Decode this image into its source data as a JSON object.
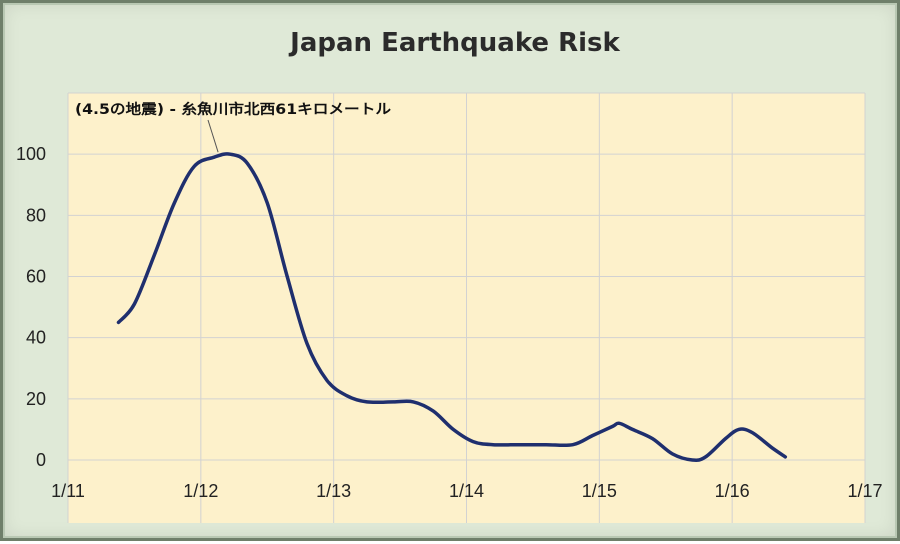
{
  "chart_data": {
    "type": "line",
    "title": "Japan Earthquake Risk",
    "xlabel": "",
    "ylabel": "",
    "xlim": [
      0,
      6
    ],
    "ylim": [
      0,
      120
    ],
    "x_ticks": [
      {
        "x": 0,
        "label": "1/11"
      },
      {
        "x": 1,
        "label": "1/12"
      },
      {
        "x": 2,
        "label": "1/13"
      },
      {
        "x": 3,
        "label": "1/14"
      },
      {
        "x": 4,
        "label": "1/15"
      },
      {
        "x": 5,
        "label": "1/16"
      },
      {
        "x": 6,
        "label": "1/17"
      }
    ],
    "y_ticks": [
      {
        "y": 0,
        "label": "0"
      },
      {
        "y": 20,
        "label": "20"
      },
      {
        "y": 40,
        "label": "40"
      },
      {
        "y": 60,
        "label": "60"
      },
      {
        "y": 80,
        "label": "80"
      },
      {
        "y": 100,
        "label": "100"
      }
    ],
    "grid": true,
    "series": [
      {
        "color": "#1f2f6e",
        "points": [
          {
            "x": 0.38,
            "y": 45
          },
          {
            "x": 0.5,
            "y": 51
          },
          {
            "x": 0.65,
            "y": 67
          },
          {
            "x": 0.8,
            "y": 84
          },
          {
            "x": 0.95,
            "y": 96
          },
          {
            "x": 1.1,
            "y": 99
          },
          {
            "x": 1.22,
            "y": 100
          },
          {
            "x": 1.35,
            "y": 97
          },
          {
            "x": 1.5,
            "y": 84
          },
          {
            "x": 1.65,
            "y": 60
          },
          {
            "x": 1.8,
            "y": 38
          },
          {
            "x": 1.95,
            "y": 26
          },
          {
            "x": 2.1,
            "y": 21
          },
          {
            "x": 2.25,
            "y": 19
          },
          {
            "x": 2.45,
            "y": 19
          },
          {
            "x": 2.6,
            "y": 19
          },
          {
            "x": 2.75,
            "y": 16
          },
          {
            "x": 2.9,
            "y": 10
          },
          {
            "x": 3.05,
            "y": 6
          },
          {
            "x": 3.2,
            "y": 5
          },
          {
            "x": 3.4,
            "y": 5
          },
          {
            "x": 3.6,
            "y": 5
          },
          {
            "x": 3.8,
            "y": 5
          },
          {
            "x": 3.95,
            "y": 8
          },
          {
            "x": 4.1,
            "y": 11
          },
          {
            "x": 4.15,
            "y": 12
          },
          {
            "x": 4.25,
            "y": 10
          },
          {
            "x": 4.4,
            "y": 7
          },
          {
            "x": 4.55,
            "y": 2
          },
          {
            "x": 4.7,
            "y": 0
          },
          {
            "x": 4.8,
            "y": 1
          },
          {
            "x": 4.95,
            "y": 7
          },
          {
            "x": 5.05,
            "y": 10
          },
          {
            "x": 5.15,
            "y": 9
          },
          {
            "x": 5.3,
            "y": 4
          },
          {
            "x": 5.4,
            "y": 1
          }
        ]
      }
    ],
    "annotations": [
      {
        "text": "(4.5の地震) - 糸魚川市北西61キロメートル",
        "x": 1.13,
        "y": 100
      }
    ]
  },
  "colors": {
    "frame": "#dfe9d7",
    "plot_area": "#fdf1cb",
    "grid": "#d2d2d2",
    "line": "#1f2f6e"
  }
}
